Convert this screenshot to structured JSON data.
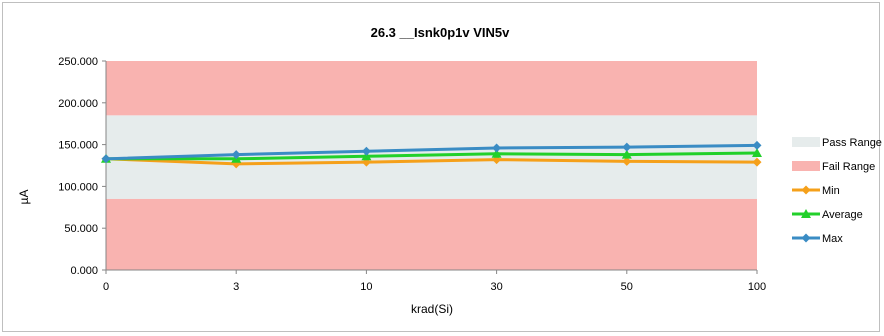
{
  "chart_data": {
    "type": "line",
    "title": "26.3 __Isnk0p1v VIN5v",
    "xlabel": "krad(Si)",
    "ylabel": "µA",
    "categories": [
      "0",
      "3",
      "10",
      "30",
      "50",
      "100"
    ],
    "ylim": [
      0,
      250
    ],
    "yticks": [
      "0.000",
      "50.000",
      "100.000",
      "150.000",
      "200.000",
      "250.000"
    ],
    "y_tick_values": [
      0,
      50,
      100,
      150,
      200,
      250
    ],
    "bands": [
      {
        "name": "Pass Range",
        "from": 85,
        "to": 185,
        "color": "#e6ecec"
      },
      {
        "name": "Fail Range",
        "from": 0,
        "to": 85,
        "color": "#f9b3b0"
      },
      {
        "name": "Fail Range",
        "from": 185,
        "to": 250,
        "color": "#f9b3b0"
      }
    ],
    "series": [
      {
        "name": "Min",
        "color": "#f5a01a",
        "marker": "diamond",
        "values": [
          133,
          127,
          129,
          132,
          130,
          129
        ]
      },
      {
        "name": "Average",
        "color": "#22d02a",
        "marker": "triangle",
        "values": [
          133,
          133,
          136,
          139,
          138,
          140
        ]
      },
      {
        "name": "Max",
        "color": "#3a8cc4",
        "marker": "diamond",
        "values": [
          133,
          138,
          142,
          146,
          147,
          149
        ]
      }
    ],
    "legend": {
      "placement": "right",
      "entries": [
        "Pass Range",
        "Fail Range",
        "Min",
        "Average",
        "Max"
      ]
    },
    "grid": false
  }
}
